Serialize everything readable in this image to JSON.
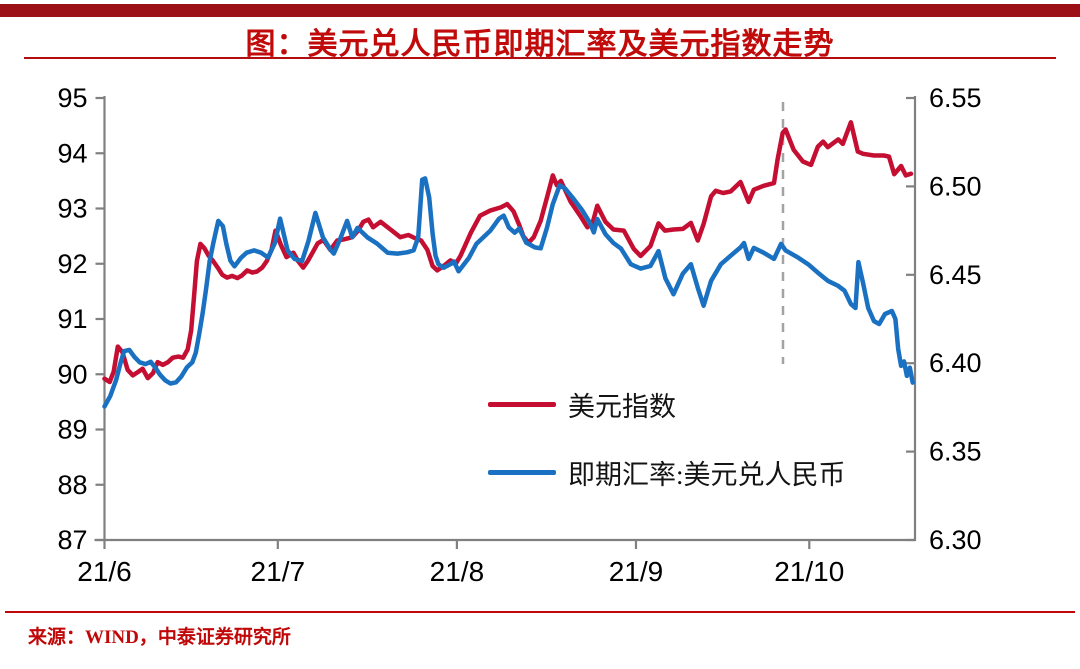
{
  "header": {
    "title": "图：美元兑人民币即期汇率及美元指数走势",
    "bar_color": "#9c1115",
    "title_color": "#c10a0a"
  },
  "footer": {
    "source": "来源：WIND，中泰证券研究所"
  },
  "legend": {
    "items": [
      {
        "label": "美元指数",
        "color": "#c40f32"
      },
      {
        "label": "即期汇率:美元兑人民币",
        "color": "#1a71c1"
      }
    ]
  },
  "axis_style": {
    "line_color": "#808080",
    "tick_label_color": "#000000"
  },
  "chart_data": {
    "type": "line",
    "title": "图：美元兑人民币即期汇率及美元指数走势",
    "grid": false,
    "legend_position": "inside-lower-center",
    "x_axis": {
      "unit": "days since 2021-06-01",
      "range": [
        0,
        140.3
      ],
      "ticks": [
        {
          "day": 0,
          "label": "21/6"
        },
        {
          "day": 30,
          "label": "21/7"
        },
        {
          "day": 61,
          "label": "21/8"
        },
        {
          "day": 92,
          "label": "21/9"
        },
        {
          "day": 122,
          "label": "21/10"
        }
      ]
    },
    "y_left": {
      "series": "美元指数",
      "range": [
        87,
        95
      ],
      "ticks": [
        95,
        94,
        93,
        92,
        91,
        90,
        89,
        88,
        87
      ]
    },
    "y_right": {
      "series": "即期汇率:美元兑人民币",
      "range": [
        6.3,
        6.55
      ],
      "ticks": [
        6.55,
        6.5,
        6.45,
        6.4,
        6.35,
        6.3
      ]
    },
    "annotation": {
      "type": "vline-dashed",
      "day": 117.45,
      "color": "#a3a3a3"
    },
    "series": [
      {
        "id": "usd-index",
        "name": "美元指数",
        "axis": "left",
        "color": "#c40f32",
        "points": [
          [
            0,
            89.92
          ],
          [
            0.9,
            89.86
          ],
          [
            1.6,
            90.05
          ],
          [
            2.3,
            90.5
          ],
          [
            3.1,
            90.4
          ],
          [
            4,
            90.08
          ],
          [
            4.9,
            89.98
          ],
          [
            5.8,
            90.04
          ],
          [
            6.6,
            90.1
          ],
          [
            7.5,
            89.93
          ],
          [
            8.4,
            90.02
          ],
          [
            9.2,
            90.22
          ],
          [
            10.1,
            90.17
          ],
          [
            11,
            90.22
          ],
          [
            11.8,
            90.3
          ],
          [
            12.8,
            90.32
          ],
          [
            13.6,
            90.3
          ],
          [
            14.4,
            90.45
          ],
          [
            15,
            90.8
          ],
          [
            15.5,
            91.4
          ],
          [
            16,
            92.05
          ],
          [
            16.6,
            92.36
          ],
          [
            17.3,
            92.28
          ],
          [
            18,
            92.15
          ],
          [
            18.8,
            92.05
          ],
          [
            19.6,
            91.93
          ],
          [
            20.4,
            91.8
          ],
          [
            21.2,
            91.75
          ],
          [
            22.1,
            91.78
          ],
          [
            23,
            91.74
          ],
          [
            23.8,
            91.79
          ],
          [
            24.7,
            91.88
          ],
          [
            25.6,
            91.84
          ],
          [
            26.4,
            91.86
          ],
          [
            27.3,
            91.93
          ],
          [
            28.1,
            92.05
          ],
          [
            28.9,
            92.25
          ],
          [
            29.6,
            92.6
          ],
          [
            30.5,
            92.35
          ],
          [
            31.5,
            92.12
          ],
          [
            32.7,
            92.2
          ],
          [
            33.5,
            92.05
          ],
          [
            34.4,
            91.93
          ],
          [
            35.2,
            92.05
          ],
          [
            36,
            92.2
          ],
          [
            36.9,
            92.37
          ],
          [
            37.9,
            92.43
          ],
          [
            39.1,
            92.25
          ],
          [
            40.3,
            92.42
          ],
          [
            41.4,
            92.44
          ],
          [
            42.9,
            92.48
          ],
          [
            43.9,
            92.6
          ],
          [
            44.8,
            92.76
          ],
          [
            45.7,
            92.8
          ],
          [
            46.5,
            92.66
          ],
          [
            47.8,
            92.76
          ],
          [
            49.5,
            92.62
          ],
          [
            51.2,
            92.48
          ],
          [
            52.6,
            92.52
          ],
          [
            54,
            92.45
          ],
          [
            54.8,
            92.42
          ],
          [
            55.9,
            92.25
          ],
          [
            56.8,
            91.96
          ],
          [
            57.6,
            91.88
          ],
          [
            58.7,
            91.96
          ],
          [
            59.9,
            92.06
          ],
          [
            60.8,
            92.0
          ],
          [
            61.6,
            92.14
          ],
          [
            63.4,
            92.56
          ],
          [
            65,
            92.87
          ],
          [
            66.7,
            92.96
          ],
          [
            68.6,
            93.02
          ],
          [
            69.7,
            93.08
          ],
          [
            70.8,
            92.95
          ],
          [
            71.8,
            92.7
          ],
          [
            72.5,
            92.5
          ],
          [
            73.4,
            92.38
          ],
          [
            74.3,
            92.48
          ],
          [
            75.5,
            92.78
          ],
          [
            76.6,
            93.2
          ],
          [
            77.6,
            93.6
          ],
          [
            78.3,
            93.42
          ],
          [
            79,
            93.5
          ],
          [
            80.7,
            93.12
          ],
          [
            82.4,
            92.86
          ],
          [
            83.6,
            92.66
          ],
          [
            84.5,
            92.74
          ],
          [
            85.3,
            93.05
          ],
          [
            86.7,
            92.76
          ],
          [
            88.1,
            92.62
          ],
          [
            89.9,
            92.6
          ],
          [
            91.6,
            92.27
          ],
          [
            92.8,
            92.14
          ],
          [
            94.5,
            92.32
          ],
          [
            95.9,
            92.73
          ],
          [
            97,
            92.6
          ],
          [
            98.5,
            92.62
          ],
          [
            100.1,
            92.63
          ],
          [
            101.5,
            92.74
          ],
          [
            102.7,
            92.42
          ],
          [
            103.7,
            92.72
          ],
          [
            105,
            93.22
          ],
          [
            105.8,
            93.32
          ],
          [
            107.1,
            93.28
          ],
          [
            108.4,
            93.31
          ],
          [
            110.1,
            93.48
          ],
          [
            111.5,
            93.12
          ],
          [
            112.4,
            93.34
          ],
          [
            114.1,
            93.41
          ],
          [
            115.9,
            93.46
          ],
          [
            116.5,
            93.88
          ],
          [
            117.4,
            94.37
          ],
          [
            117.9,
            94.43
          ],
          [
            119.3,
            94.06
          ],
          [
            120.9,
            93.85
          ],
          [
            122.3,
            93.79
          ],
          [
            123.5,
            94.12
          ],
          [
            124.4,
            94.21
          ],
          [
            125.2,
            94.11
          ],
          [
            127,
            94.25
          ],
          [
            127.8,
            94.17
          ],
          [
            129.2,
            94.56
          ],
          [
            130.4,
            94.03
          ],
          [
            131.3,
            93.99
          ],
          [
            133.2,
            93.96
          ],
          [
            134.9,
            93.96
          ],
          [
            135.8,
            93.94
          ],
          [
            136.7,
            93.62
          ],
          [
            137.9,
            93.77
          ],
          [
            138.7,
            93.6
          ],
          [
            139.6,
            93.63
          ]
        ]
      },
      {
        "id": "usdcny-spot",
        "name": "即期汇率:美元兑人民币",
        "axis": "right",
        "color": "#1a71c1",
        "points": [
          [
            0,
            6.3755
          ],
          [
            1,
            6.3815
          ],
          [
            2,
            6.3905
          ],
          [
            2.8,
            6.4005
          ],
          [
            3.4,
            6.4068
          ],
          [
            4.3,
            6.4075
          ],
          [
            5.2,
            6.4035
          ],
          [
            6.1,
            6.4005
          ],
          [
            7.1,
            6.3995
          ],
          [
            8,
            6.4008
          ],
          [
            8.8,
            6.3975
          ],
          [
            9.6,
            6.3935
          ],
          [
            10.5,
            6.3903
          ],
          [
            11.4,
            6.3885
          ],
          [
            12.4,
            6.3892
          ],
          [
            13.3,
            6.3925
          ],
          [
            14.3,
            6.3978
          ],
          [
            15.2,
            6.4005
          ],
          [
            15.8,
            6.406
          ],
          [
            16.4,
            6.4165
          ],
          [
            17,
            6.4285
          ],
          [
            17.6,
            6.4425
          ],
          [
            18.2,
            6.4575
          ],
          [
            18.9,
            6.469
          ],
          [
            19.7,
            6.4805
          ],
          [
            20.5,
            6.4775
          ],
          [
            21.1,
            6.4673
          ],
          [
            21.8,
            6.458
          ],
          [
            22.5,
            6.4548
          ],
          [
            23.6,
            6.4595
          ],
          [
            24.6,
            6.4625
          ],
          [
            25.9,
            6.4638
          ],
          [
            27.1,
            6.4625
          ],
          [
            28.3,
            6.4598
          ],
          [
            29.5,
            6.468
          ],
          [
            30.4,
            6.4818
          ],
          [
            31.7,
            6.4638
          ],
          [
            32.9,
            6.459
          ],
          [
            34.2,
            6.4578
          ],
          [
            35.3,
            6.469
          ],
          [
            36.5,
            6.485
          ],
          [
            37.8,
            6.4712
          ],
          [
            39.2,
            6.4638
          ],
          [
            39.7,
            6.462
          ],
          [
            40.9,
            6.4712
          ],
          [
            42,
            6.4805
          ],
          [
            42.9,
            6.4712
          ],
          [
            43.8,
            6.4765
          ],
          [
            45.5,
            6.4712
          ],
          [
            47.2,
            6.4676
          ],
          [
            49,
            6.4625
          ],
          [
            50.7,
            6.462
          ],
          [
            52.4,
            6.4627
          ],
          [
            53.5,
            6.4638
          ],
          [
            54.3,
            6.4712
          ],
          [
            55,
            6.5038
          ],
          [
            55.5,
            6.5045
          ],
          [
            56.2,
            6.4937
          ],
          [
            56.8,
            6.4733
          ],
          [
            57.3,
            6.4608
          ],
          [
            57.8,
            6.456
          ],
          [
            58.7,
            6.454
          ],
          [
            60,
            6.4562
          ],
          [
            60.5,
            6.4575
          ],
          [
            61.3,
            6.452
          ],
          [
            63.1,
            6.4597
          ],
          [
            64.4,
            6.4676
          ],
          [
            66.8,
            6.475
          ],
          [
            68.3,
            6.4818
          ],
          [
            69.1,
            6.4835
          ],
          [
            70,
            6.4767
          ],
          [
            71,
            6.4738
          ],
          [
            71.8,
            6.4762
          ],
          [
            73,
            6.4682
          ],
          [
            74.5,
            6.4655
          ],
          [
            75.5,
            6.465
          ],
          [
            76.6,
            6.4767
          ],
          [
            77.6,
            6.49
          ],
          [
            78.8,
            6.5006
          ],
          [
            79.7,
            6.4989
          ],
          [
            81,
            6.4938
          ],
          [
            82.7,
            6.4864
          ],
          [
            84,
            6.4795
          ],
          [
            84.7,
            6.474
          ],
          [
            85.3,
            6.4815
          ],
          [
            86.7,
            6.473
          ],
          [
            88.1,
            6.468
          ],
          [
            89.4,
            6.4648
          ],
          [
            91.1,
            6.456
          ],
          [
            92.8,
            6.4535
          ],
          [
            94.5,
            6.455
          ],
          [
            95.9,
            6.4634
          ],
          [
            97.1,
            6.448
          ],
          [
            98.5,
            6.439
          ],
          [
            100.1,
            6.4506
          ],
          [
            101.5,
            6.456
          ],
          [
            102.7,
            6.4426
          ],
          [
            103.7,
            6.4325
          ],
          [
            105,
            6.4466
          ],
          [
            106.7,
            6.456
          ],
          [
            108.4,
            6.4608
          ],
          [
            110.1,
            6.4655
          ],
          [
            110.7,
            6.468
          ],
          [
            111.5,
            6.459
          ],
          [
            112.4,
            6.4652
          ],
          [
            114.1,
            6.4625
          ],
          [
            115.9,
            6.459
          ],
          [
            117.1,
            6.4675
          ],
          [
            117.9,
            6.4638
          ],
          [
            120.1,
            6.4597
          ],
          [
            121.8,
            6.456
          ],
          [
            123.5,
            6.4512
          ],
          [
            125.2,
            6.4466
          ],
          [
            127,
            6.4437
          ],
          [
            128.1,
            6.441
          ],
          [
            129.2,
            6.4335
          ],
          [
            130,
            6.4312
          ],
          [
            130.5,
            6.4572
          ],
          [
            131.3,
            6.4455
          ],
          [
            132.2,
            6.4312
          ],
          [
            133.2,
            6.4238
          ],
          [
            134.1,
            6.4222
          ],
          [
            135.1,
            6.4278
          ],
          [
            136.3,
            6.4295
          ],
          [
            136.9,
            6.425
          ],
          [
            137.4,
            6.408
          ],
          [
            137.9,
            6.3985
          ],
          [
            138.4,
            6.401
          ],
          [
            138.9,
            6.3928
          ],
          [
            139.4,
            6.3975
          ],
          [
            139.9,
            6.389
          ]
        ]
      }
    ]
  }
}
